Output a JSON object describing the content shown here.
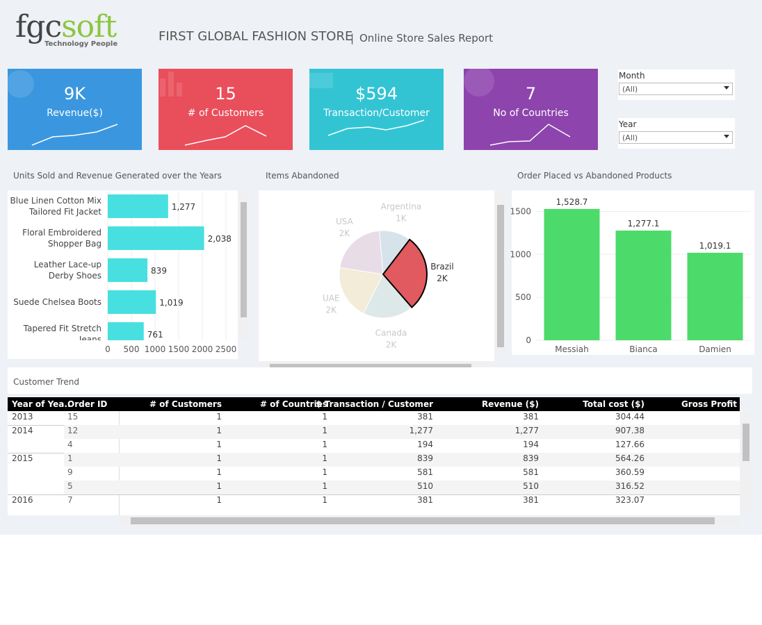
{
  "header": {
    "logo_main": "fgc",
    "logo_accent": "soft",
    "logo_tagline": "Technology People",
    "title": "FIRST GLOBAL FASHION STORE",
    "subtitle": "Online Store Sales Report"
  },
  "kpis": [
    {
      "value": "9K",
      "label": "Revenue($)",
      "color": "#3a97df"
    },
    {
      "value": "15",
      "label": "# of Customers",
      "color": "#e94e5b"
    },
    {
      "value": "$594",
      "label": "Transaction/Customer",
      "color": "#33c4d4"
    },
    {
      "value": "7",
      "label": "No of Countries",
      "color": "#8e44ad"
    }
  ],
  "filters": [
    {
      "label": "Month",
      "value": "(All)"
    },
    {
      "label": "Year",
      "value": "(All)"
    }
  ],
  "chart_data": [
    {
      "type": "hbar",
      "title": "Units Sold and Revenue Generated over the Years",
      "categories": [
        "Blue Linen Cotton Mix Tailored Fit Jacket",
        "Floral Embroidered Shopper Bag",
        "Leather Lace-up Derby Shoes",
        "Suede Chelsea Boots",
        "Tapered Fit Stretch Jeans"
      ],
      "values": [
        1277,
        2038,
        839,
        1019,
        761
      ],
      "value_labels": [
        "1,277",
        "2,038",
        "839",
        "1,019",
        "761"
      ],
      "color": "#48dfe0",
      "xlim": [
        0,
        2700
      ],
      "xticks": [
        0,
        500,
        1000,
        1500,
        2000,
        2500
      ],
      "grid": true
    },
    {
      "type": "pie",
      "title": "Items Abandoned",
      "categories": [
        "Argentina",
        "Brazil",
        "Canada",
        "UAE",
        "USA"
      ],
      "values": [
        1.0,
        2.4,
        1.6,
        1.7,
        1.8
      ],
      "value_labels": [
        "1K",
        "2K",
        "2K",
        "2K",
        "2K"
      ],
      "colors": [
        "#d6e3ea",
        "#e05a5f",
        "#dde8e8",
        "#f2ecd8",
        "#e8dde6"
      ],
      "highlight_index": 1
    },
    {
      "type": "bar",
      "title": "Order Placed vs Abandoned Products",
      "categories": [
        "Messiah",
        "Bianca",
        "Damien"
      ],
      "values": [
        1528.7,
        1277.1,
        1019.1
      ],
      "value_labels": [
        "1,528.7",
        "1,277.1",
        "1,019.1"
      ],
      "color": "#4cdb6a",
      "ylim": [
        0,
        1730
      ],
      "yticks": [
        0,
        500,
        1000,
        1500
      ],
      "grid": true
    }
  ],
  "table": {
    "title": "Customer Trend",
    "columns": [
      "Year of Yea..",
      "Order ID",
      "# of Customers",
      "# of Countries",
      "$ Transaction / Customer",
      "Revenue ($)",
      "Total cost ($)",
      "Gross Profit"
    ],
    "groups": [
      {
        "year": "2013",
        "rows": [
          [
            "15",
            "1",
            "1",
            "381",
            "381",
            "304.44"
          ]
        ]
      },
      {
        "year": "2014",
        "rows": [
          [
            "12",
            "1",
            "1",
            "1,277",
            "1,277",
            "907.38"
          ],
          [
            "4",
            "1",
            "1",
            "194",
            "194",
            "127.66"
          ]
        ]
      },
      {
        "year": "2015",
        "rows": [
          [
            "1",
            "1",
            "1",
            "839",
            "839",
            "564.26"
          ],
          [
            "9",
            "1",
            "1",
            "581",
            "581",
            "360.59"
          ],
          [
            "5",
            "1",
            "1",
            "510",
            "510",
            "316.52"
          ]
        ]
      },
      {
        "year": "2016",
        "rows": [
          [
            "7",
            "1",
            "1",
            "381",
            "381",
            "323.07"
          ]
        ]
      }
    ]
  }
}
